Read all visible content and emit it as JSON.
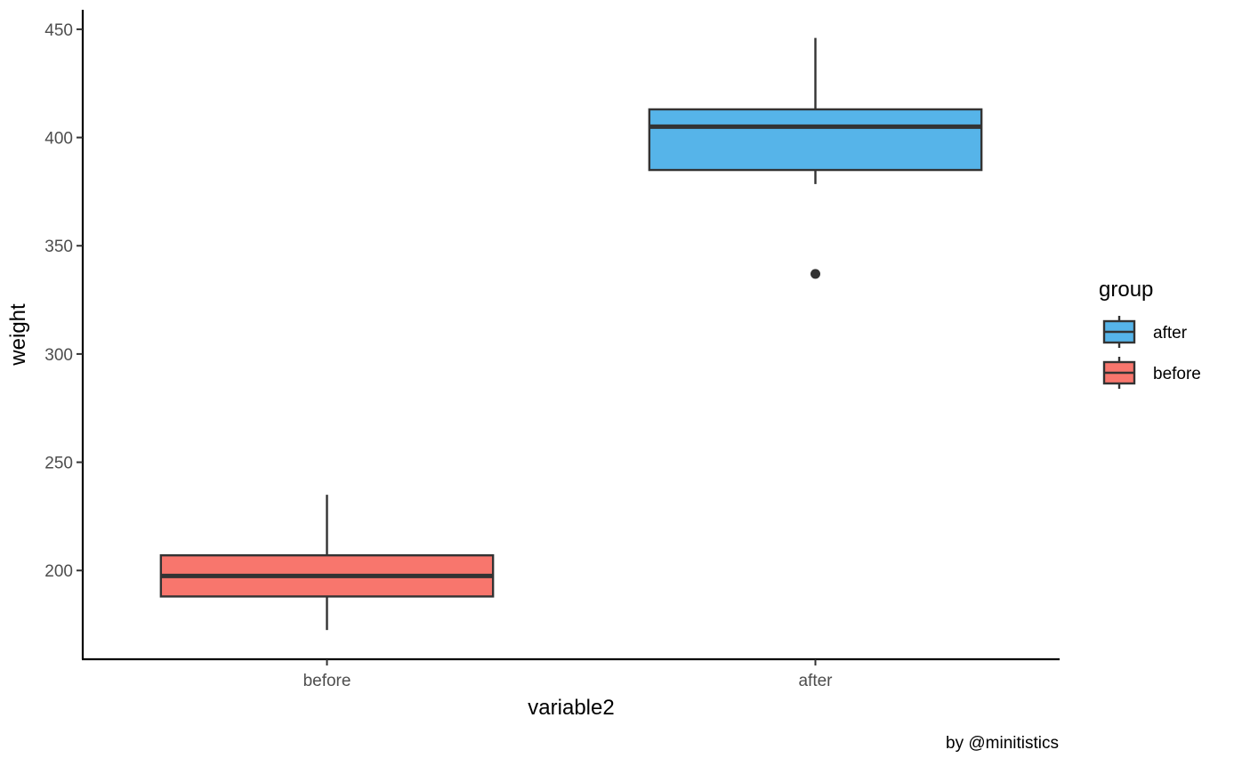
{
  "chart_data": {
    "type": "boxplot",
    "xlabel": "variable2",
    "ylabel": "weight",
    "ylim": [
      159,
      459
    ],
    "yticks": [
      200,
      250,
      300,
      350,
      400,
      450
    ],
    "categories": [
      "before",
      "after"
    ],
    "boxes": [
      {
        "category": "before",
        "group": "before",
        "color": "#F8766D",
        "q1": 188,
        "median": 197.5,
        "q3": 207,
        "whisker_low": 172.5,
        "whisker_high": 235,
        "outliers": []
      },
      {
        "category": "after",
        "group": "after",
        "color": "#56B4E9",
        "q1": 385,
        "median": 405,
        "q3": 413,
        "whisker_low": 378.5,
        "whisker_high": 446,
        "outliers": [
          337
        ]
      }
    ],
    "legend": {
      "title": "group",
      "position": "right",
      "items": [
        {
          "label": "after",
          "color": "#56B4E9"
        },
        {
          "label": "before",
          "color": "#F8766D"
        }
      ]
    },
    "grid": false
  },
  "caption": "by @minitistics"
}
